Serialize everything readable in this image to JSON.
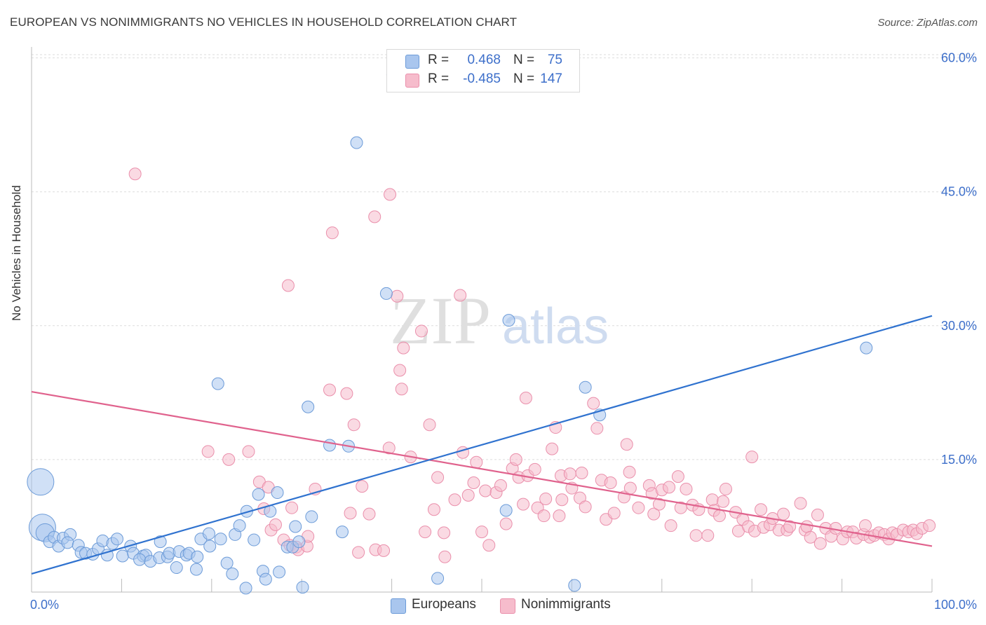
{
  "title": "EUROPEAN VS NONIMMIGRANTS NO VEHICLES IN HOUSEHOLD CORRELATION CHART",
  "source": "Source: ZipAtlas.com",
  "watermark": {
    "zip": "ZIP",
    "atlas": "atlas"
  },
  "legend_stats": [
    {
      "r_label": "R =",
      "r_value": "0.468",
      "n_label": "N =",
      "n_value": "75"
    },
    {
      "r_label": "R =",
      "r_value": "-0.485",
      "n_label": "N =",
      "n_value": "147"
    }
  ],
  "legend": {
    "europeans": "Europeans",
    "nonimmigrants": "Nonimmigrants"
  },
  "colors": {
    "europeans_fill": "#a9c6ee",
    "europeans_stroke": "#6c9bd8",
    "europeans_line": "#2f72cf",
    "nonimmigrants_fill": "#f6bccc",
    "nonimmigrants_stroke": "#ea8fab",
    "nonimmigrants_line": "#e0628d",
    "tick_label": "#3d6fca",
    "grid": "#dddddd"
  },
  "chart_data": {
    "type": "scatter",
    "title": "EUROPEAN VS NONIMMIGRANTS NO VEHICLES IN HOUSEHOLD CORRELATION CHART",
    "xlabel": "",
    "ylabel": "No Vehicles in Household",
    "xlim": [
      0,
      100
    ],
    "ylim": [
      0,
      62
    ],
    "x_tick_labels": [
      "0.0%",
      "100.0%"
    ],
    "y_ticks": [
      15,
      30,
      45,
      60
    ],
    "y_tick_labels": [
      "15.0%",
      "30.0%",
      "45.0%",
      "60.0%"
    ],
    "grid": true,
    "series": [
      {
        "name": "Europeans",
        "r": 0.468,
        "n": 75,
        "trend": {
          "x": [
            0,
            100
          ],
          "y": [
            2.2,
            31.1
          ]
        },
        "points": [
          [
            1,
            12.5,
            3
          ],
          [
            1.2,
            7.4,
            3
          ],
          [
            1.5,
            6.8,
            2
          ],
          [
            2,
            5.8,
            1
          ],
          [
            2.5,
            6.3,
            1
          ],
          [
            3,
            5.3,
            1
          ],
          [
            3.5,
            6.2,
            1
          ],
          [
            4.3,
            6.6,
            1
          ],
          [
            4,
            5.7,
            1
          ],
          [
            5.2,
            5.4,
            1
          ],
          [
            5.5,
            4.6,
            1
          ],
          [
            6,
            4.5,
            1
          ],
          [
            6.8,
            4.4,
            1
          ],
          [
            7.4,
            5.0,
            1
          ],
          [
            7.9,
            5.9,
            1
          ],
          [
            8.4,
            4.3,
            1
          ],
          [
            9,
            5.6,
            1
          ],
          [
            9.5,
            6.1,
            1
          ],
          [
            10.1,
            4.2,
            1
          ],
          [
            11,
            5.3,
            1
          ],
          [
            11.3,
            4.5,
            1
          ],
          [
            12.4,
            4.2,
            1
          ],
          [
            12.7,
            4.3,
            1
          ],
          [
            12,
            3.8,
            1
          ],
          [
            13.2,
            3.6,
            1
          ],
          [
            14.3,
            5.8,
            1
          ],
          [
            14.2,
            4.0,
            1
          ],
          [
            15.1,
            4.1,
            1
          ],
          [
            15.3,
            4.5,
            1
          ],
          [
            16.1,
            2.9,
            1
          ],
          [
            16.4,
            4.7,
            1
          ],
          [
            17.2,
            4.3,
            1
          ],
          [
            17.5,
            4.5,
            1
          ],
          [
            18.4,
            4.1,
            1
          ],
          [
            18.3,
            2.7,
            1
          ],
          [
            18.8,
            6.1,
            1
          ],
          [
            19.7,
            6.7,
            1
          ],
          [
            19.8,
            5.3,
            1
          ],
          [
            20.7,
            23.5,
            1
          ],
          [
            21,
            6.1,
            1
          ],
          [
            21.7,
            3.4,
            1
          ],
          [
            22.3,
            2.2,
            1
          ],
          [
            22.6,
            6.6,
            1
          ],
          [
            23.1,
            7.6,
            1
          ],
          [
            23.9,
            9.2,
            1
          ],
          [
            23.8,
            0.6,
            1
          ],
          [
            24.7,
            6.0,
            1
          ],
          [
            25.2,
            11.1,
            1
          ],
          [
            25.7,
            2.5,
            1
          ],
          [
            26,
            1.6,
            1
          ],
          [
            26.5,
            9.2,
            1
          ],
          [
            27.3,
            11.3,
            1
          ],
          [
            27.5,
            2.4,
            1
          ],
          [
            28.4,
            5.2,
            1
          ],
          [
            29,
            5.2,
            1
          ],
          [
            29.3,
            7.5,
            1
          ],
          [
            29.7,
            5.8,
            1
          ],
          [
            30.1,
            0.7,
            1
          ],
          [
            30.7,
            20.9,
            1
          ],
          [
            31.1,
            8.6,
            1
          ],
          [
            33.1,
            16.6,
            1
          ],
          [
            34.5,
            6.9,
            1
          ],
          [
            35.2,
            16.5,
            1
          ],
          [
            36.1,
            50.5,
            1
          ],
          [
            39.4,
            33.6,
            1
          ],
          [
            40.1,
            58.1,
            1
          ],
          [
            45.1,
            1.7,
            1
          ],
          [
            52.7,
            9.3,
            1
          ],
          [
            53,
            30.6,
            1
          ],
          [
            60.3,
            0.9,
            1
          ],
          [
            61.5,
            23.1,
            1
          ],
          [
            63.1,
            20.0,
            1
          ],
          [
            92.7,
            27.5,
            1
          ]
        ]
      },
      {
        "name": "Nonimmigrants",
        "r": -0.485,
        "n": 147,
        "trend": {
          "x": [
            0,
            100
          ],
          "y": [
            22.6,
            5.3
          ]
        },
        "points": [
          [
            11.5,
            47.0
          ],
          [
            19.6,
            15.9
          ],
          [
            21.9,
            15.0
          ],
          [
            24.1,
            15.9
          ],
          [
            25.3,
            12.5
          ],
          [
            25.8,
            9.5
          ],
          [
            26.3,
            11.9
          ],
          [
            26.6,
            7.1
          ],
          [
            27.1,
            7.7
          ],
          [
            28,
            6.0
          ],
          [
            28.5,
            34.5
          ],
          [
            28.7,
            5.4
          ],
          [
            28.9,
            9.6
          ],
          [
            29.4,
            5.2
          ],
          [
            29.6,
            4.9
          ],
          [
            30.6,
            5.3
          ],
          [
            30.7,
            6.4
          ],
          [
            31.5,
            11.7
          ],
          [
            33.1,
            22.8
          ],
          [
            33.4,
            40.4
          ],
          [
            35,
            22.4
          ],
          [
            35.4,
            9.0
          ],
          [
            35.8,
            18.9
          ],
          [
            36.3,
            4.6
          ],
          [
            36.7,
            12.0
          ],
          [
            37.5,
            8.9
          ],
          [
            38.1,
            42.2
          ],
          [
            38.2,
            4.9
          ],
          [
            39.1,
            4.8
          ],
          [
            39.7,
            16.3
          ],
          [
            39.8,
            44.7
          ],
          [
            40.6,
            33.3
          ],
          [
            40.9,
            25.0
          ],
          [
            41.1,
            22.9
          ],
          [
            41.3,
            27.5
          ],
          [
            42.1,
            15.3
          ],
          [
            43.3,
            29.4
          ],
          [
            44.2,
            18.9
          ],
          [
            43.7,
            6.9
          ],
          [
            44.7,
            9.4
          ],
          [
            45.1,
            13.0
          ],
          [
            45.8,
            6.8
          ],
          [
            45.9,
            4.1
          ],
          [
            47,
            10.5
          ],
          [
            47.6,
            33.4
          ],
          [
            47.9,
            15.8
          ],
          [
            48.5,
            11.0
          ],
          [
            49.1,
            12.4
          ],
          [
            49.4,
            14.7
          ],
          [
            50,
            6.9
          ],
          [
            50.4,
            11.5
          ],
          [
            50.8,
            5.4
          ],
          [
            51.6,
            11.3
          ],
          [
            52.1,
            12.1
          ],
          [
            52.7,
            7.8
          ],
          [
            53.4,
            14.0
          ],
          [
            53.8,
            15.0
          ],
          [
            54.1,
            13.0
          ],
          [
            54.6,
            10.0
          ],
          [
            54.9,
            21.9
          ],
          [
            55.1,
            13.2
          ],
          [
            55.9,
            13.9
          ],
          [
            56.2,
            9.6
          ],
          [
            56.9,
            8.7
          ],
          [
            57.1,
            10.6
          ],
          [
            57.8,
            16.2
          ],
          [
            58.2,
            18.6
          ],
          [
            58.6,
            8.7
          ],
          [
            58.8,
            13.2
          ],
          [
            58.9,
            10.5
          ],
          [
            59.8,
            13.4
          ],
          [
            60,
            11.8
          ],
          [
            60.9,
            10.7
          ],
          [
            61.1,
            13.5
          ],
          [
            61.5,
            9.7
          ],
          [
            62.4,
            21.3
          ],
          [
            62.8,
            18.5
          ],
          [
            63.3,
            12.7
          ],
          [
            63.8,
            8.3
          ],
          [
            64.3,
            12.4
          ],
          [
            64.7,
            9.0
          ],
          [
            65.8,
            10.8
          ],
          [
            66.1,
            16.7
          ],
          [
            66.4,
            13.6
          ],
          [
            66.5,
            11.8
          ],
          [
            67.4,
            9.6
          ],
          [
            68.6,
            12.1
          ],
          [
            68.9,
            11.2
          ],
          [
            69.1,
            8.9
          ],
          [
            69.7,
            10.0
          ],
          [
            70,
            11.6
          ],
          [
            70.8,
            11.9
          ],
          [
            71,
            7.6
          ],
          [
            71.8,
            13.1
          ],
          [
            72.1,
            9.6
          ],
          [
            72.7,
            11.7
          ],
          [
            73.4,
            9.9
          ],
          [
            73.8,
            6.5
          ],
          [
            74.1,
            9.4
          ],
          [
            75.1,
            6.5
          ],
          [
            75.6,
            10.5
          ],
          [
            75.8,
            9.3
          ],
          [
            76.4,
            8.7
          ],
          [
            76.8,
            10.3
          ],
          [
            77.1,
            11.7
          ],
          [
            78.2,
            9.1
          ],
          [
            78.5,
            7.0
          ],
          [
            79,
            8.3
          ],
          [
            79.6,
            7.5
          ],
          [
            80,
            15.3
          ],
          [
            80.3,
            7.0
          ],
          [
            81,
            9.4
          ],
          [
            81.3,
            7.4
          ],
          [
            82,
            7.7
          ],
          [
            82.3,
            8.4
          ],
          [
            83,
            7.1
          ],
          [
            83.5,
            8.9
          ],
          [
            83.9,
            7.1
          ],
          [
            84.2,
            7.5
          ],
          [
            85.4,
            10.1
          ],
          [
            85.9,
            7.1
          ],
          [
            86.1,
            7.5
          ],
          [
            86.5,
            6.3
          ],
          [
            87.3,
            8.8
          ],
          [
            87.6,
            5.6
          ],
          [
            88.2,
            7.3
          ],
          [
            88.8,
            6.4
          ],
          [
            89.3,
            7.3
          ],
          [
            90.1,
            6.1
          ],
          [
            90.6,
            6.9
          ],
          [
            91.2,
            6.9
          ],
          [
            91.6,
            6.2
          ],
          [
            92.4,
            6.6
          ],
          [
            92.6,
            7.6
          ],
          [
            93.1,
            6.3
          ],
          [
            93.6,
            6.5
          ],
          [
            94.1,
            6.8
          ],
          [
            94.7,
            6.6
          ],
          [
            95.2,
            6.1
          ],
          [
            95.6,
            6.8
          ],
          [
            96.1,
            6.6
          ],
          [
            96.8,
            7.1
          ],
          [
            97.4,
            6.9
          ],
          [
            97.9,
            7.1
          ],
          [
            98.3,
            6.7
          ],
          [
            98.9,
            7.3
          ],
          [
            99.7,
            7.6
          ]
        ]
      }
    ]
  }
}
